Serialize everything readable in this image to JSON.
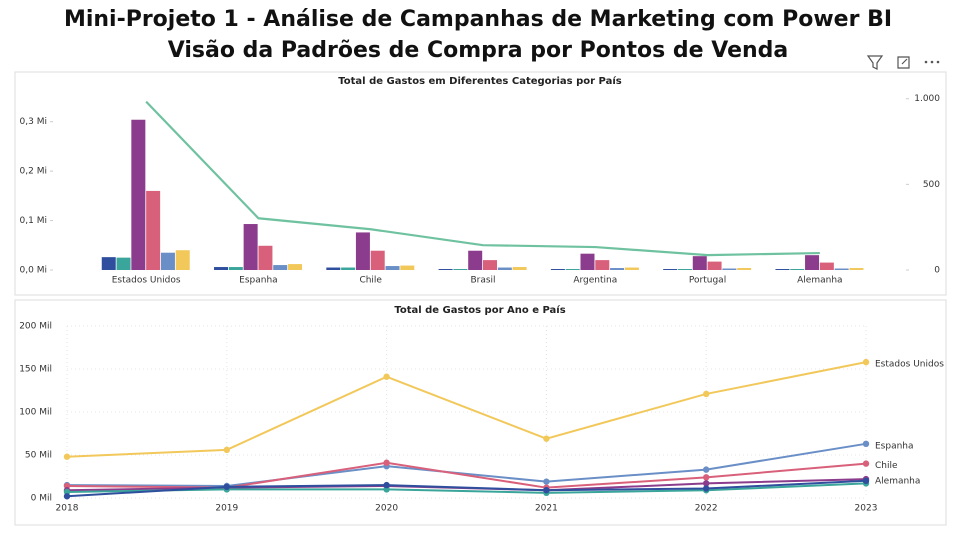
{
  "header": {
    "title": "Mini-Projeto 1 - Análise de Campanhas de Marketing com Power BI",
    "subtitle": "Visão da Padrões de Compra por Pontos de Venda"
  },
  "chart_data": [
    {
      "type": "bar",
      "title": "Total de Gastos em Diferentes Categorias por País",
      "categories": [
        "Estados Unidos",
        "Espanha",
        "Chile",
        "Brasil",
        "Argentina",
        "Portugal",
        "Alemanha"
      ],
      "series": [
        {
          "color": "#2f4f9e",
          "values": [
            0.026,
            0.006,
            0.005,
            0.002,
            0.002,
            0.002,
            0.002
          ]
        },
        {
          "color": "#3aa59a",
          "values": [
            0.025,
            0.006,
            0.005,
            0.002,
            0.002,
            0.002,
            0.002
          ]
        },
        {
          "color": "#8b3c8c",
          "values": [
            0.304,
            0.093,
            0.076,
            0.039,
            0.033,
            0.028,
            0.03
          ]
        },
        {
          "color": "#d9607a",
          "values": [
            0.16,
            0.049,
            0.039,
            0.02,
            0.02,
            0.017,
            0.015
          ]
        },
        {
          "color": "#6a8fc7",
          "values": [
            0.035,
            0.01,
            0.008,
            0.005,
            0.004,
            0.003,
            0.003
          ]
        },
        {
          "color": "#f2c85b",
          "values": [
            0.04,
            0.012,
            0.009,
            0.006,
            0.005,
            0.004,
            0.004
          ]
        },
        {
          "color": "#6fc2a0",
          "type": "line",
          "axis": "y2",
          "values": [
            983,
            302,
            238,
            145,
            134,
            87,
            99
          ]
        }
      ],
      "ylim": [
        0,
        0.35
      ],
      "yticks": [
        {
          "value": 0,
          "label": "0,0 Mi"
        },
        {
          "value": 0.1,
          "label": "0,1 Mi"
        },
        {
          "value": 0.2,
          "label": "0,2 Mi"
        },
        {
          "value": 0.3,
          "label": "0,3 Mi"
        }
      ],
      "y2lim": [
        0,
        1010
      ],
      "y2ticks": [
        0,
        500,
        {
          "value": 1000,
          "label": "1.000"
        }
      ]
    },
    {
      "type": "line",
      "title": "Total de Gastos por Ano e País",
      "x": [
        2018,
        2019,
        2020,
        2021,
        2022,
        2023
      ],
      "xlim": [
        2018,
        2023
      ],
      "xticks": [
        2018,
        2019,
        2020,
        2021,
        2022,
        2023
      ],
      "series": [
        {
          "name": "Estados Unidos",
          "color": "#f2c85b",
          "values": [
            48,
            56,
            141,
            69,
            121,
            158
          ]
        },
        {
          "name": "Espanha",
          "color": "#6a8fc7",
          "values": [
            15,
            14,
            37,
            19,
            33,
            63
          ]
        },
        {
          "name": "Chile",
          "color": "#d9607a",
          "values": [
            14,
            12,
            41,
            12,
            24,
            40
          ]
        },
        {
          "name": "Alemanha",
          "color": "#8b3c8c",
          "values": [
            9,
            12,
            14,
            9,
            17,
            22
          ]
        },
        {
          "color": "#3aa59a",
          "values": [
            7,
            10,
            10,
            6,
            9,
            17
          ]
        },
        {
          "color": "#2f4f9e",
          "values": [
            2,
            13,
            15,
            9,
            11,
            20
          ]
        }
      ],
      "ylim": [
        0,
        200
      ],
      "yticks": [
        {
          "value": 0,
          "label": "0 Mil"
        },
        {
          "value": 50,
          "label": "50 Mil"
        },
        {
          "value": 100,
          "label": "100 Mil"
        },
        {
          "value": 150,
          "label": "150 Mil"
        },
        {
          "value": 200,
          "label": "200 Mil"
        }
      ],
      "grid": true
    }
  ]
}
